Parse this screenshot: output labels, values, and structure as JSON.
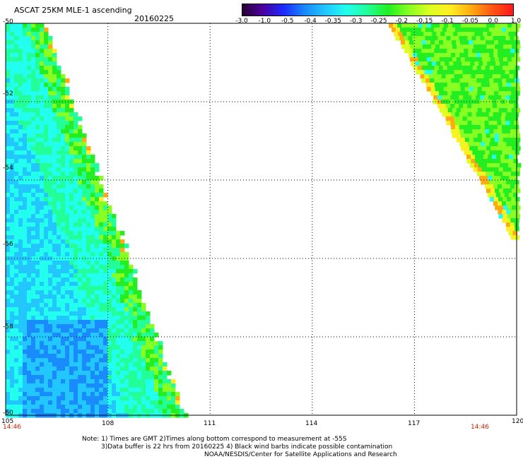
{
  "header": {
    "title": "ASCAT 25KM MLE-1 ascending",
    "date": "20160225"
  },
  "colorbar": {
    "labels": [
      "-3.0",
      "-1.0",
      "-0.5",
      "-0.4",
      "-0.35",
      "-0.3",
      "-0.25",
      "-0.2",
      "-0.15",
      "-0.1",
      "-0.05",
      "0.0",
      "1.0"
    ],
    "colors": [
      "#2a0033",
      "#4a00a0",
      "#1a2cff",
      "#1a8aff",
      "#22c7ff",
      "#22ffee",
      "#22ff99",
      "#22ee22",
      "#88ff22",
      "#ddff22",
      "#ffee22",
      "#ffaa11",
      "#ff5511",
      "#ff1a1a"
    ]
  },
  "map": {
    "lon_min": 105,
    "lon_max": 120,
    "lat_min": -60,
    "lat_max": -50,
    "lon_ticks": [
      "105",
      "108",
      "111",
      "114",
      "117",
      "120"
    ],
    "lat_ticks": [
      "-50",
      "-52",
      "-54",
      "-56",
      "-58",
      "-60"
    ],
    "grid_line_color": "#000000"
  },
  "times": {
    "left": "14:46",
    "right": "14:46"
  },
  "notes": {
    "line1": "Note: 1) Times are GMT 2)Times along bottom correspond to measurement at -55S",
    "line2": "3)Data buffer is 22 hrs from 20160225 4) Black wind barbs indicate possible contamination",
    "line3": "NOAA/NESDIS/Center for Satellite Applications and Research"
  }
}
